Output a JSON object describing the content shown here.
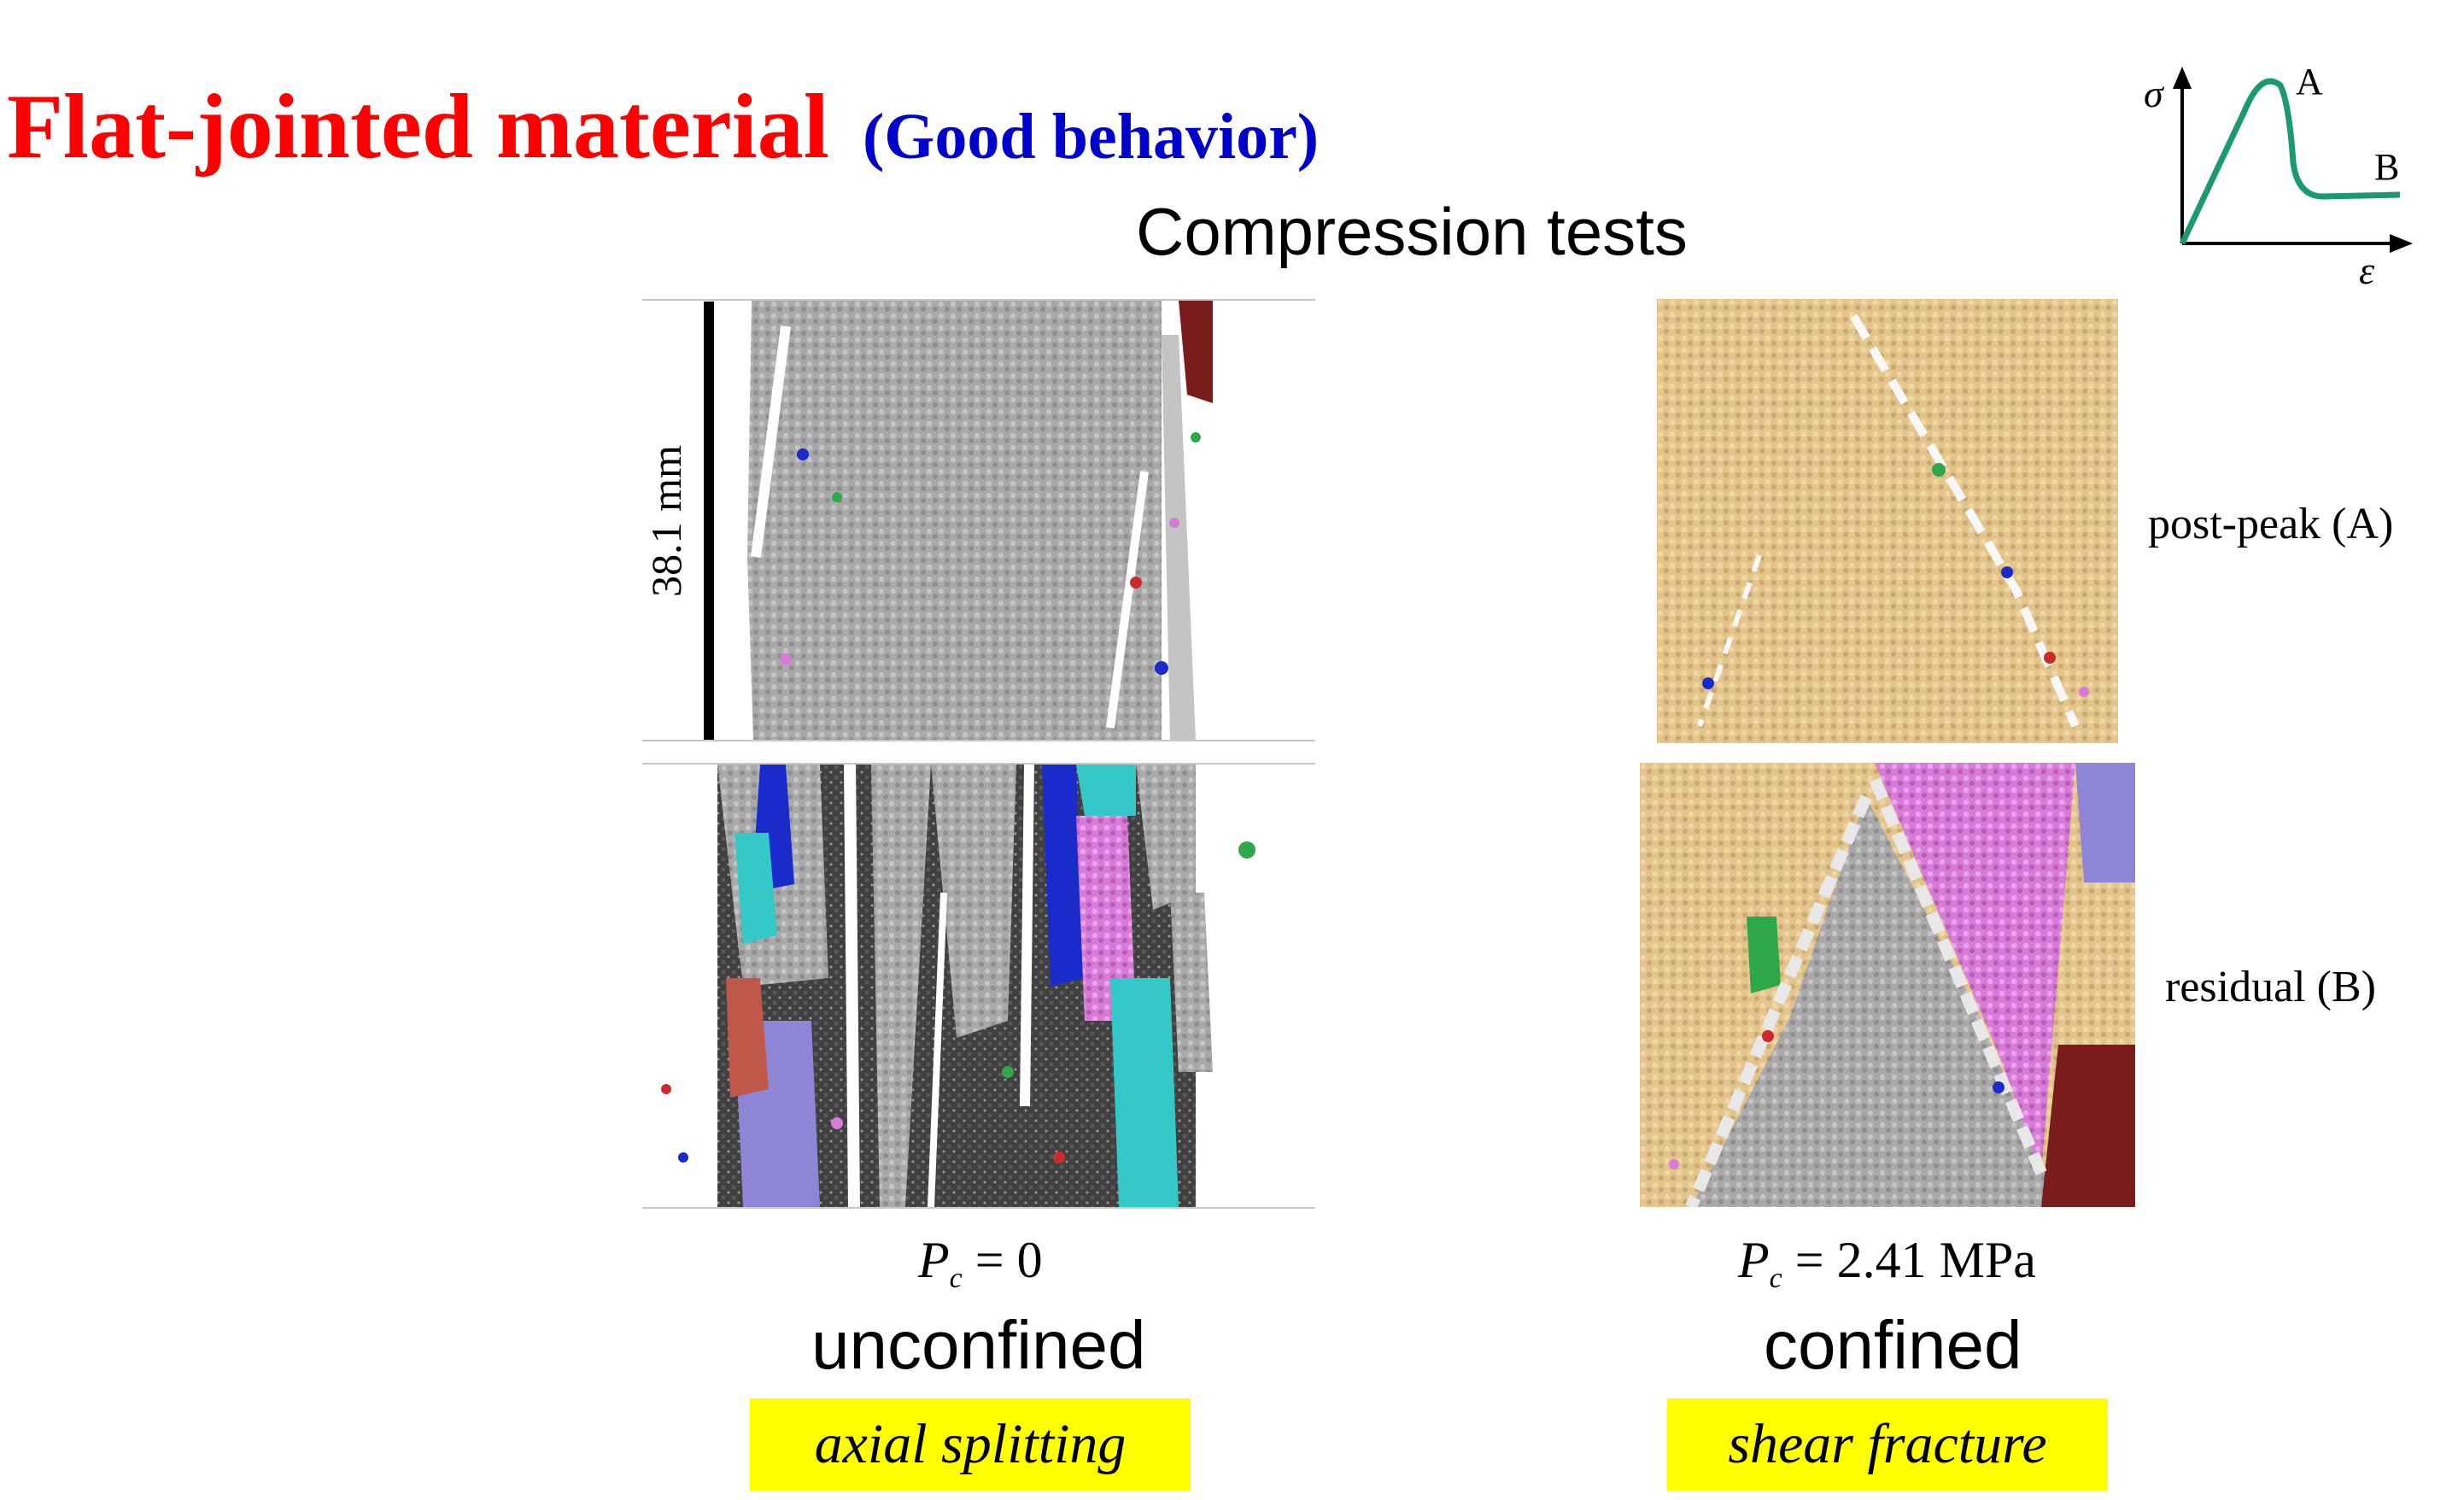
{
  "title": {
    "main": "Flat-jointed material",
    "sub": "(Good behavior)"
  },
  "heading": "Compression tests",
  "scale_bar": {
    "label": "38.1 mm"
  },
  "inset": {
    "y_symbol": "σ",
    "x_symbol": "ε",
    "point_a": "A",
    "point_b": "B",
    "line_color": "#1a9a6e"
  },
  "rows": {
    "post_peak": "post-peak (A)",
    "residual": "residual (B)"
  },
  "columns": {
    "unconfined": {
      "pc_symbol": "P",
      "pc_sub": "c",
      "pc_value": "= 0",
      "label": "unconfined",
      "mode": "axial splitting"
    },
    "confined": {
      "pc_symbol": "P",
      "pc_sub": "c",
      "pc_value": "= 2.41 MPa",
      "label": "confined",
      "mode": "shear fracture"
    }
  },
  "colors": {
    "title": "#ff0000",
    "subtitle": "#0000cc",
    "highlight": "#ffff00",
    "grey_particles": "#a9a9a9",
    "tan_particles": "#e3c48a",
    "magenta_particles": "#d87bd8",
    "dark_particles": "#404040",
    "maroon": "#7a1c1c",
    "blue": "#1a2bcc",
    "cyan": "#35c8c8",
    "lavender": "#8f85d6"
  }
}
